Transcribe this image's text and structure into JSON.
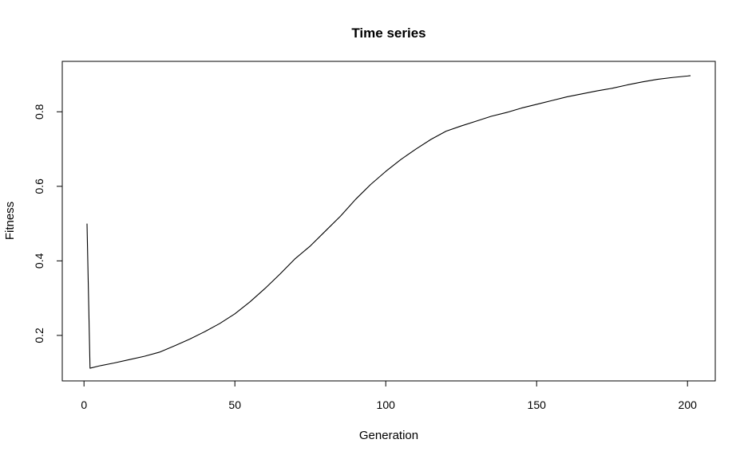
{
  "chart_data": {
    "type": "line",
    "title": "Time series",
    "xlabel": "Generation",
    "ylabel": "Fitness",
    "xlim": [
      1,
      201
    ],
    "ylim": [
      0.11,
      0.9
    ],
    "x_ticks": [
      0,
      50,
      100,
      150,
      200
    ],
    "x_tick_labels": [
      "0",
      "50",
      "100",
      "150",
      "200"
    ],
    "y_ticks": [
      0.2,
      0.4,
      0.6,
      0.8
    ],
    "y_tick_labels": [
      "0.2",
      "0.4",
      "0.6",
      "0.8"
    ],
    "grid": false,
    "legend": "none",
    "line_color": "#000000",
    "series": [
      {
        "x": [
          1,
          2,
          5,
          10,
          15,
          20,
          25,
          30,
          35,
          40,
          45,
          50,
          55,
          60,
          65,
          70,
          75,
          80,
          85,
          90,
          95,
          100,
          105,
          110,
          115,
          120,
          125,
          130,
          135,
          140,
          145,
          150,
          155,
          160,
          165,
          170,
          175,
          180,
          185,
          190,
          195,
          200,
          201
        ],
        "y": [
          0.5,
          0.112,
          0.118,
          0.126,
          0.135,
          0.144,
          0.155,
          0.172,
          0.19,
          0.21,
          0.232,
          0.258,
          0.29,
          0.326,
          0.365,
          0.406,
          0.44,
          0.48,
          0.52,
          0.565,
          0.605,
          0.64,
          0.672,
          0.7,
          0.726,
          0.748,
          0.762,
          0.775,
          0.788,
          0.798,
          0.81,
          0.82,
          0.83,
          0.84,
          0.848,
          0.856,
          0.863,
          0.872,
          0.88,
          0.887,
          0.892,
          0.896,
          0.897
        ]
      }
    ]
  }
}
